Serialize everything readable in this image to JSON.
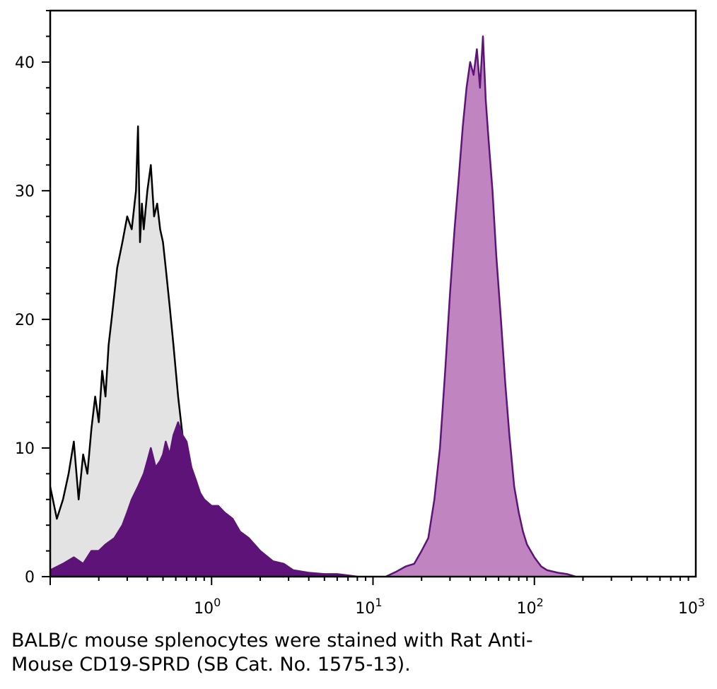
{
  "chart_data": {
    "type": "area",
    "title": "",
    "xlabel": "",
    "ylabel": "",
    "x_scale": "log",
    "xlim": [
      0.1,
      1000
    ],
    "ylim": [
      0,
      44
    ],
    "x_ticks": [
      {
        "value": 1,
        "base": "10",
        "exp": "0"
      },
      {
        "value": 10,
        "base": "10",
        "exp": "1"
      },
      {
        "value": 100,
        "base": "10",
        "exp": "2"
      },
      {
        "value": 1000,
        "base": "10",
        "exp": "3"
      }
    ],
    "y_ticks": [
      0,
      10,
      20,
      30,
      40
    ],
    "grid": false,
    "legend": "none",
    "series": [
      {
        "fill": "#e3e3e3",
        "stroke": "#000000",
        "x": [
          0.1,
          0.11,
          0.12,
          0.13,
          0.14,
          0.15,
          0.16,
          0.17,
          0.18,
          0.19,
          0.2,
          0.21,
          0.22,
          0.23,
          0.24,
          0.25,
          0.26,
          0.28,
          0.3,
          0.32,
          0.34,
          0.35,
          0.36,
          0.37,
          0.38,
          0.4,
          0.42,
          0.44,
          0.46,
          0.48,
          0.5,
          0.52,
          0.55,
          0.58,
          0.62,
          0.66,
          0.7,
          0.75,
          0.8,
          0.85,
          0.9,
          1.0,
          1.1,
          1.2,
          1.35,
          1.5,
          1.7,
          2.0,
          2.4,
          2.8
        ],
        "y": [
          7,
          4.5,
          6,
          8,
          10.5,
          6,
          9.5,
          8,
          11.5,
          14,
          12,
          16,
          14,
          18,
          20,
          22,
          24,
          26,
          28,
          27,
          30,
          35,
          26,
          29,
          27,
          30,
          32,
          28,
          29,
          27,
          26,
          24,
          21,
          18,
          14,
          11,
          9,
          6.5,
          5,
          3.5,
          2.5,
          2,
          1.5,
          1,
          0.7,
          0.5,
          0.3,
          0.2,
          0.1,
          0
        ]
      },
      {
        "fill": "#5e1379",
        "stroke": "#5e1379",
        "x": [
          0.1,
          0.12,
          0.14,
          0.16,
          0.18,
          0.2,
          0.22,
          0.25,
          0.28,
          0.3,
          0.32,
          0.35,
          0.38,
          0.4,
          0.42,
          0.45,
          0.48,
          0.5,
          0.52,
          0.55,
          0.58,
          0.62,
          0.66,
          0.7,
          0.75,
          0.8,
          0.85,
          0.9,
          1.0,
          1.1,
          1.2,
          1.35,
          1.5,
          1.7,
          2.0,
          2.4,
          2.8,
          3.2,
          4.0,
          5.0,
          6.0,
          7.0,
          8.0
        ],
        "y": [
          0.5,
          1,
          1.5,
          1,
          2,
          2,
          2.5,
          3,
          4,
          5,
          6,
          7,
          8,
          9,
          10,
          8.5,
          9,
          9.5,
          10.5,
          9.5,
          11,
          12,
          11,
          10.5,
          8.5,
          7.5,
          6.5,
          6,
          5.5,
          5.5,
          5,
          4.5,
          3.5,
          3,
          2,
          1.2,
          1,
          0.5,
          0.3,
          0.2,
          0.2,
          0.1,
          0
        ]
      },
      {
        "fill": "#c085c0",
        "stroke": "#5e1379",
        "x": [
          12,
          14,
          16,
          18,
          20,
          22,
          24,
          26,
          28,
          30,
          32,
          34,
          36,
          38,
          40,
          42,
          44,
          46,
          48,
          50,
          52,
          55,
          58,
          62,
          66,
          70,
          75,
          80,
          85,
          90,
          100,
          110,
          120,
          140,
          160,
          180
        ],
        "y": [
          0,
          0.4,
          0.8,
          1,
          2,
          3,
          6,
          10,
          16,
          22,
          27,
          31,
          35,
          38,
          40,
          39,
          41,
          38,
          42,
          37,
          34,
          30,
          25,
          20,
          15,
          11,
          7,
          5,
          3.5,
          2.5,
          1.5,
          0.8,
          0.5,
          0.3,
          0.2,
          0
        ]
      }
    ]
  },
  "caption": {
    "line1": "BALB/c mouse splenocytes were stained with Rat Anti-",
    "line2": "Mouse CD19-SPRD (SB Cat. No. 1575-13)."
  }
}
